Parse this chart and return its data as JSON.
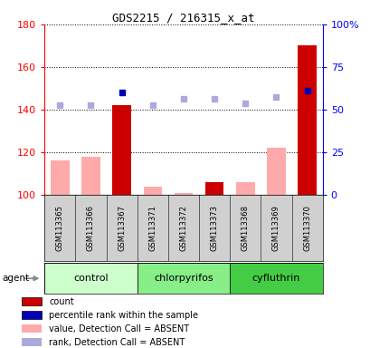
{
  "title": "GDS2215 / 216315_x_at",
  "samples": [
    "GSM113365",
    "GSM113366",
    "GSM113367",
    "GSM113371",
    "GSM113372",
    "GSM113373",
    "GSM113368",
    "GSM113369",
    "GSM113370"
  ],
  "groups": [
    {
      "name": "control",
      "indices": [
        0,
        1,
        2
      ]
    },
    {
      "name": "chlorpyrifos",
      "indices": [
        3,
        4,
        5
      ]
    },
    {
      "name": "cyfluthrin",
      "indices": [
        6,
        7,
        8
      ]
    }
  ],
  "group_colors": [
    "#ccffcc",
    "#88ee88",
    "#44cc44"
  ],
  "bar_values": [
    116,
    118,
    142,
    104,
    101,
    106,
    106,
    122,
    170
  ],
  "bar_absent": [
    true,
    true,
    false,
    true,
    true,
    false,
    true,
    true,
    false
  ],
  "rank_values": [
    142,
    142,
    148,
    142,
    145,
    145,
    143,
    146,
    149
  ],
  "rank_absent": [
    true,
    true,
    false,
    true,
    true,
    true,
    true,
    true,
    false
  ],
  "ylim_left": [
    100,
    180
  ],
  "ylim_right": [
    0,
    100
  ],
  "yticks_left": [
    100,
    120,
    140,
    160,
    180
  ],
  "yticks_right": [
    0,
    25,
    50,
    75,
    100
  ],
  "ytick_labels_right": [
    "0",
    "25",
    "50",
    "75",
    "100%"
  ],
  "bar_color_present": "#cc0000",
  "bar_color_absent": "#ffaaaa",
  "rank_color_present": "#0000bb",
  "rank_color_absent": "#aaaadd",
  "legend_items": [
    {
      "color": "#cc0000",
      "label": "count"
    },
    {
      "color": "#0000bb",
      "label": "percentile rank within the sample"
    },
    {
      "color": "#ffaaaa",
      "label": "value, Detection Call = ABSENT"
    },
    {
      "color": "#aaaadd",
      "label": "rank, Detection Call = ABSENT"
    }
  ],
  "plot_bg": "#ffffff",
  "sample_row_bg": "#d0d0d0",
  "fig_bg": "#ffffff"
}
